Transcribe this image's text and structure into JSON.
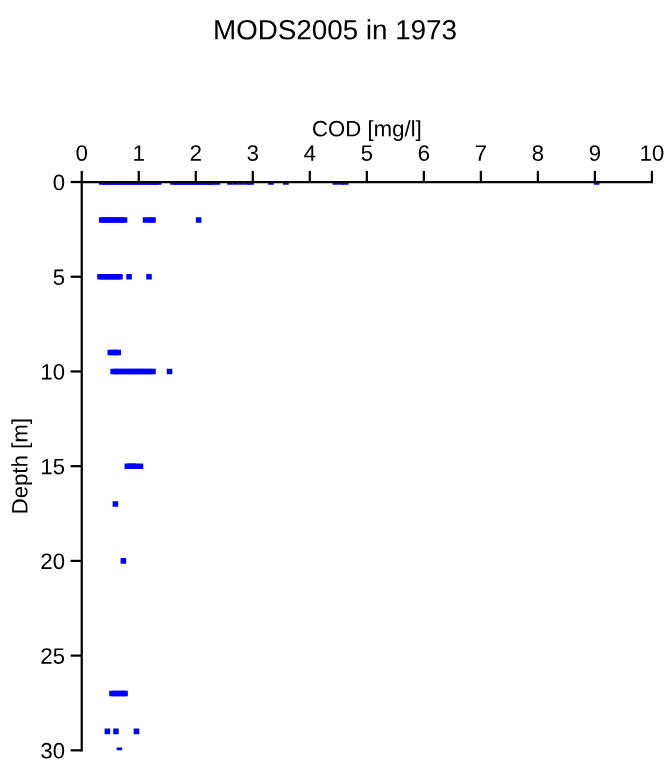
{
  "chart_data": {
    "type": "scatter",
    "title": "MODS2005 in 1973",
    "xlabel": "COD [mg/l]",
    "ylabel": "Depth [m]",
    "xlim": [
      0,
      10
    ],
    "xticks": [
      0,
      1,
      2,
      3,
      4,
      5,
      6,
      7,
      8,
      9,
      10
    ],
    "ylim": [
      30,
      0
    ],
    "yticks": [
      0,
      5,
      10,
      15,
      20,
      25,
      30
    ],
    "grid": false,
    "legend": false,
    "marker": "square",
    "series": [
      {
        "color": "#0000ff",
        "x": [
          0.35,
          0.4,
          0.45,
          0.5,
          0.55,
          0.6,
          0.65,
          0.7,
          0.75,
          0.8,
          0.85,
          0.9,
          0.95,
          1.0,
          1.05,
          1.1,
          1.15,
          1.2,
          1.25,
          1.3,
          1.35,
          1.6,
          1.65,
          1.7,
          1.75,
          1.8,
          1.85,
          1.9,
          1.95,
          2.0,
          2.05,
          2.1,
          2.15,
          2.2,
          2.25,
          2.3,
          2.38,
          2.6,
          2.7,
          2.8,
          2.9,
          2.97,
          3.32,
          3.58,
          4.45,
          4.55,
          4.63,
          9.03,
          0.35,
          0.4,
          0.45,
          0.5,
          0.55,
          0.6,
          0.65,
          0.7,
          0.75,
          1.12,
          1.2,
          1.25,
          2.05,
          0.32,
          0.37,
          0.42,
          0.47,
          0.52,
          0.57,
          0.62,
          0.67,
          0.83,
          1.18,
          0.5,
          0.55,
          0.6,
          0.64,
          0.55,
          0.6,
          0.65,
          0.7,
          0.75,
          0.8,
          0.85,
          0.9,
          0.95,
          1.0,
          1.05,
          1.1,
          1.15,
          1.2,
          1.25,
          1.54,
          0.8,
          0.85,
          0.9,
          0.94,
          1.03,
          0.59,
          0.73,
          0.53,
          0.58,
          0.63,
          0.68,
          0.73,
          0.76,
          0.45,
          0.6,
          0.96,
          0.66
        ],
        "values": [
          0,
          0,
          0,
          0,
          0,
          0,
          0,
          0,
          0,
          0,
          0,
          0,
          0,
          0,
          0,
          0,
          0,
          0,
          0,
          0,
          0,
          0,
          0,
          0,
          0,
          0,
          0,
          0,
          0,
          0,
          0,
          0,
          0,
          0,
          0,
          0,
          0,
          0,
          0,
          0,
          0,
          0,
          0,
          0,
          0,
          0,
          0,
          0,
          2,
          2,
          2,
          2,
          2,
          2,
          2,
          2,
          2,
          2,
          2,
          2,
          2,
          5,
          5,
          5,
          5,
          5,
          5,
          5,
          5,
          5,
          5,
          9,
          9,
          9,
          9,
          10,
          10,
          10,
          10,
          10,
          10,
          10,
          10,
          10,
          10,
          10,
          10,
          10,
          10,
          10,
          10,
          15,
          15,
          15,
          15,
          15,
          17,
          20,
          27,
          27,
          27,
          27,
          27,
          27,
          29,
          29,
          29,
          30
        ]
      }
    ]
  }
}
